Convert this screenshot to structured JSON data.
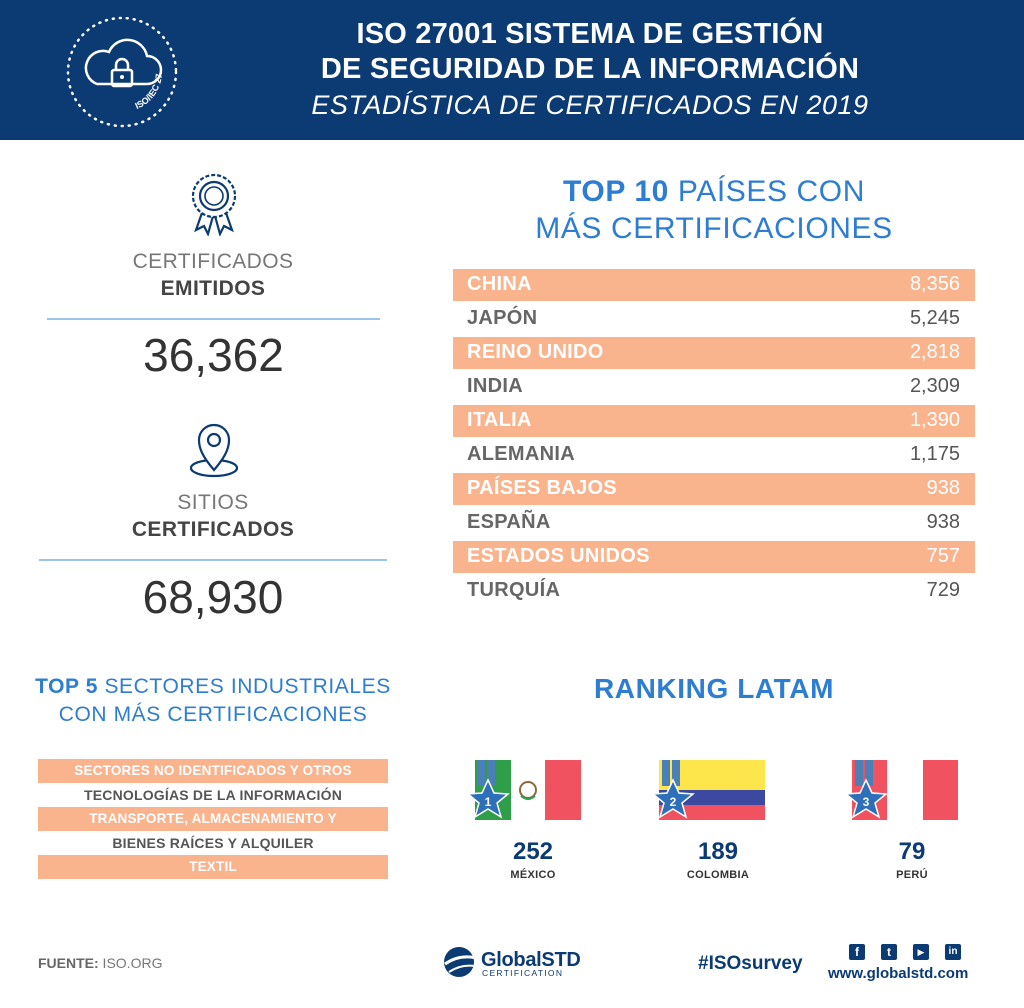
{
  "header": {
    "line1_bold": "ISO 27001",
    "line1_rest": " SISTEMA DE GESTIÓN",
    "line2": "DE SEGURIDAD DE LA INFORMACIÓN",
    "line3": "ESTADÍSTICA DE CERTIFICADOS EN 2019",
    "badge_text": "ISO/IEC 27001"
  },
  "stats": [
    {
      "label1": "CERTIFICADOS",
      "label2": "EMITIDOS",
      "value": "36,362",
      "icon": "award-ribbon-icon"
    },
    {
      "label1": "SITIOS",
      "label2": "CERTIFICADOS",
      "value": "68,930",
      "icon": "location-pin-icon"
    }
  ],
  "top10": {
    "title_bold": "TOP 10",
    "title_rest": " PAÍSES CON",
    "title_line2": "MÁS CERTIFICACIONES",
    "rows": [
      {
        "name": "CHINA",
        "value": "8,356"
      },
      {
        "name": "JAPÓN",
        "value": "5,245"
      },
      {
        "name": "REINO UNIDO",
        "value": "2,818"
      },
      {
        "name": "INDIA",
        "value": "2,309"
      },
      {
        "name": "ITALIA",
        "value": "1,390"
      },
      {
        "name": "ALEMANIA",
        "value": "1,175"
      },
      {
        "name": "PAÍSES BAJOS",
        "value": "938"
      },
      {
        "name": "ESPAÑA",
        "value": "938"
      },
      {
        "name": "ESTADOS UNIDOS",
        "value": "757"
      },
      {
        "name": "TURQUÍA",
        "value": "729"
      }
    ]
  },
  "sectors": {
    "title_bold": "TOP 5",
    "title_rest": " SECTORES INDUSTRIALES",
    "title_line2": "CON MÁS CERTIFICACIONES",
    "items": [
      "SECTORES NO IDENTIFICADOS Y OTROS SERVICIOS",
      "TECNOLOGÍAS DE LA INFORMACIÓN",
      "TRANSPORTE, ALMACENAMIENTO Y COMUNICACIÓN",
      "BIENES RAÍCES Y ALQUILER",
      "TEXTIL"
    ]
  },
  "latam": {
    "title": "RANKING LATAM",
    "items": [
      {
        "rank": "1",
        "value": "252",
        "country": "MÉXICO"
      },
      {
        "rank": "2",
        "value": "189",
        "country": "COLOMBIA"
      },
      {
        "rank": "3",
        "value": "79",
        "country": "PERÚ"
      }
    ]
  },
  "footer": {
    "source_label": "FUENTE:",
    "source_value": " ISO.ORG",
    "logo_name": "GlobalSTD",
    "logo_sub": "CERTIFICATION",
    "hashtag": "#ISOsurvey",
    "website": "www.globalstd.com",
    "social": [
      {
        "icon": "facebook-icon",
        "glyph": "f"
      },
      {
        "icon": "twitter-icon",
        "glyph": "t"
      },
      {
        "icon": "youtube-icon",
        "glyph": "▶"
      },
      {
        "icon": "linkedin-icon",
        "glyph": "in"
      }
    ]
  },
  "colors": {
    "navy": "#0c3a72",
    "accent_blue": "#2d7dd2",
    "peach": "#f9b48e",
    "divider": "#9cc3ea"
  }
}
